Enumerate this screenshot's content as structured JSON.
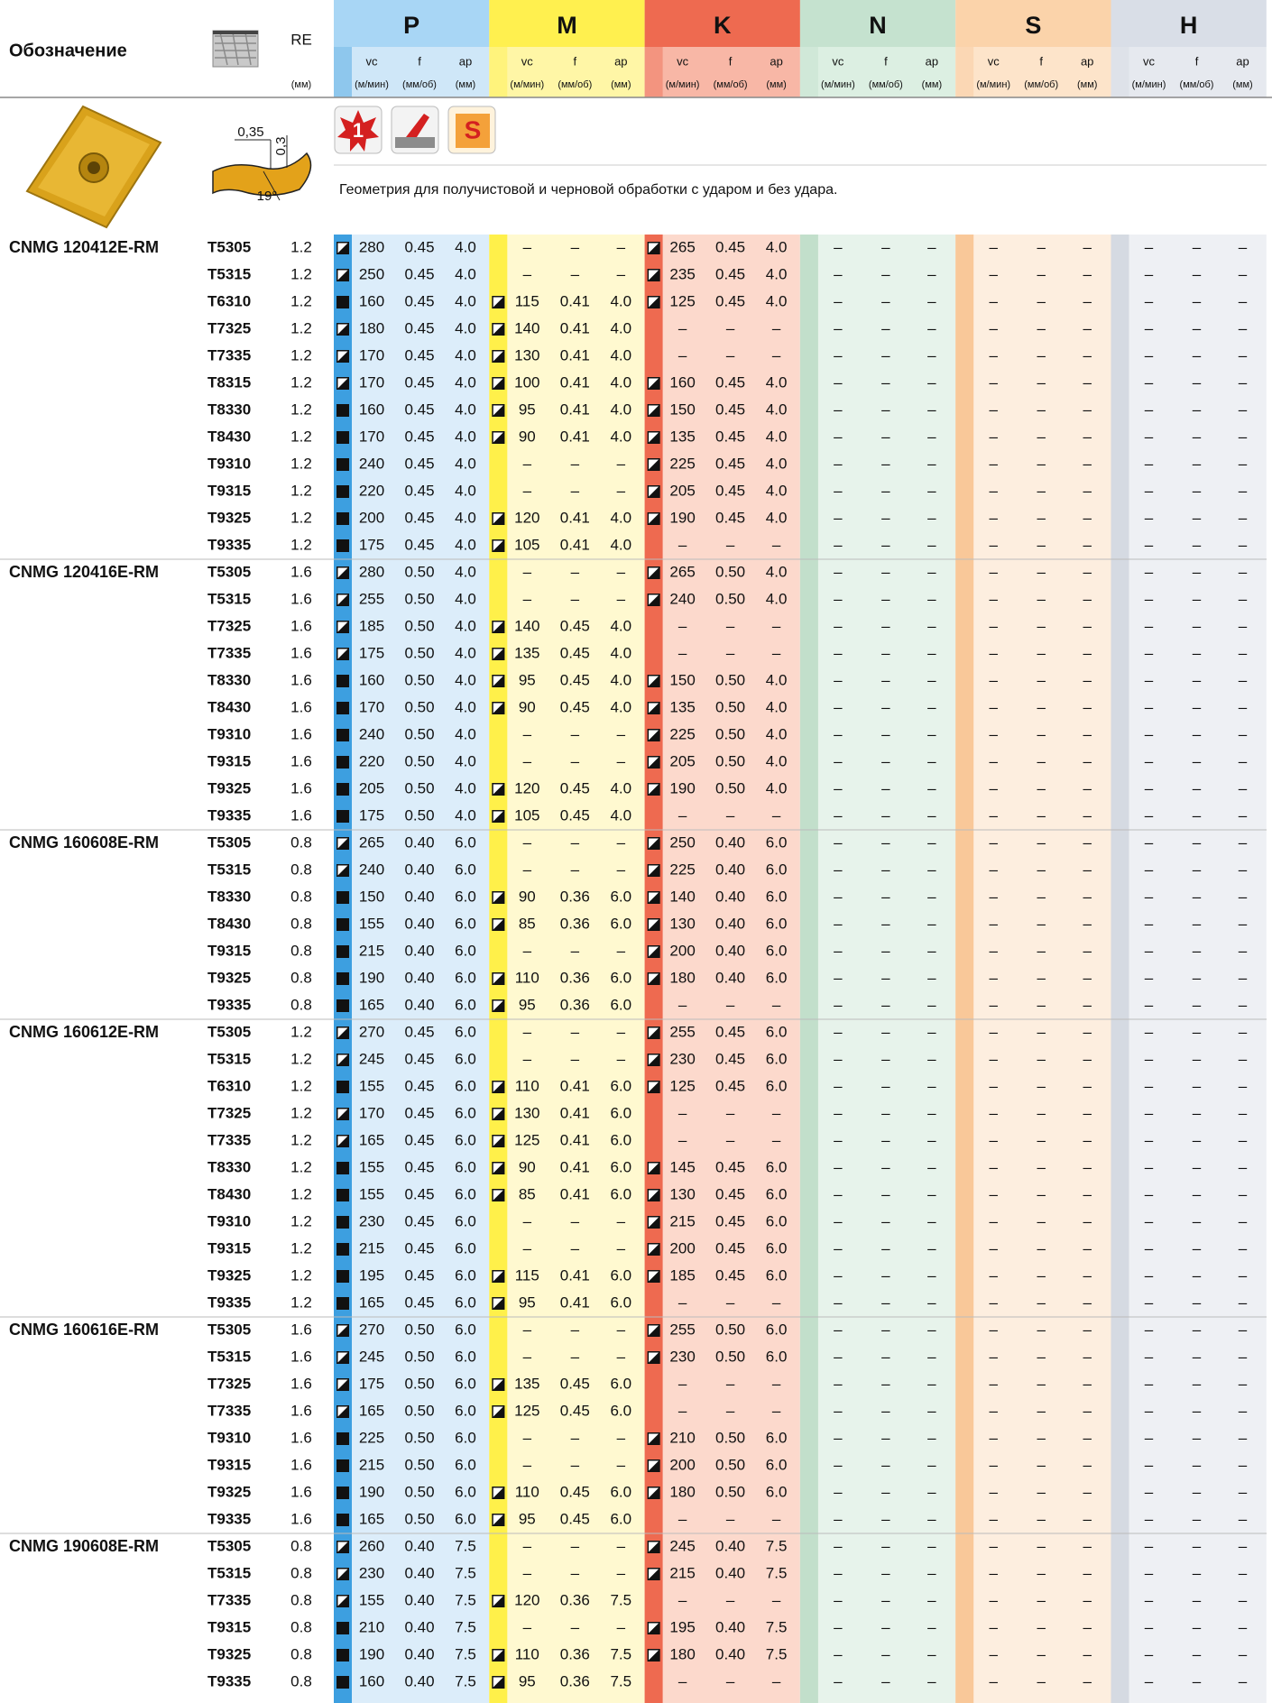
{
  "header": {
    "designation": "Обозначение",
    "re": "RE",
    "re_unit": "(мм)",
    "groups": [
      "P",
      "M",
      "K",
      "N",
      "S",
      "H"
    ],
    "sub": [
      "vc",
      "f",
      "ap"
    ],
    "units": [
      "(м/мин)",
      "(мм/об)",
      "(мм)"
    ]
  },
  "geometry": {
    "dims": [
      "0,35",
      "0,3",
      "19°"
    ],
    "badge1": "1",
    "badge3": "S",
    "text": "Геометрия для получистовой и черновой обработки с ударом и без удара."
  },
  "table": {
    "dash": "–",
    "groups": [
      {
        "designation": "CNMG 120412E-RM",
        "rows": [
          [
            "T5305",
            "1.2",
            [
              "h",
              "280",
              "0.45",
              "4.0"
            ],
            null,
            [
              "h",
              "265",
              "0.45",
              "4.0"
            ]
          ],
          [
            "T5315",
            "1.2",
            [
              "h",
              "250",
              "0.45",
              "4.0"
            ],
            null,
            [
              "h",
              "235",
              "0.45",
              "4.0"
            ]
          ],
          [
            "T6310",
            "1.2",
            [
              "f",
              "160",
              "0.45",
              "4.0"
            ],
            [
              "h",
              "115",
              "0.41",
              "4.0"
            ],
            [
              "h",
              "125",
              "0.45",
              "4.0"
            ]
          ],
          [
            "T7325",
            "1.2",
            [
              "h",
              "180",
              "0.45",
              "4.0"
            ],
            [
              "h",
              "140",
              "0.41",
              "4.0"
            ],
            null
          ],
          [
            "T7335",
            "1.2",
            [
              "h",
              "170",
              "0.45",
              "4.0"
            ],
            [
              "h",
              "130",
              "0.41",
              "4.0"
            ],
            null
          ],
          [
            "T8315",
            "1.2",
            [
              "h",
              "170",
              "0.45",
              "4.0"
            ],
            [
              "h",
              "100",
              "0.41",
              "4.0"
            ],
            [
              "h",
              "160",
              "0.45",
              "4.0"
            ]
          ],
          [
            "T8330",
            "1.2",
            [
              "f",
              "160",
              "0.45",
              "4.0"
            ],
            [
              "h",
              "95",
              "0.41",
              "4.0"
            ],
            [
              "h",
              "150",
              "0.45",
              "4.0"
            ]
          ],
          [
            "T8430",
            "1.2",
            [
              "f",
              "170",
              "0.45",
              "4.0"
            ],
            [
              "h",
              "90",
              "0.41",
              "4.0"
            ],
            [
              "h",
              "135",
              "0.45",
              "4.0"
            ]
          ],
          [
            "T9310",
            "1.2",
            [
              "f",
              "240",
              "0.45",
              "4.0"
            ],
            null,
            [
              "h",
              "225",
              "0.45",
              "4.0"
            ]
          ],
          [
            "T9315",
            "1.2",
            [
              "f",
              "220",
              "0.45",
              "4.0"
            ],
            null,
            [
              "h",
              "205",
              "0.45",
              "4.0"
            ]
          ],
          [
            "T9325",
            "1.2",
            [
              "f",
              "200",
              "0.45",
              "4.0"
            ],
            [
              "h",
              "120",
              "0.41",
              "4.0"
            ],
            [
              "h",
              "190",
              "0.45",
              "4.0"
            ]
          ],
          [
            "T9335",
            "1.2",
            [
              "f",
              "175",
              "0.45",
              "4.0"
            ],
            [
              "h",
              "105",
              "0.41",
              "4.0"
            ],
            null
          ]
        ]
      },
      {
        "designation": "CNMG 120416E-RM",
        "rows": [
          [
            "T5305",
            "1.6",
            [
              "h",
              "280",
              "0.50",
              "4.0"
            ],
            null,
            [
              "h",
              "265",
              "0.50",
              "4.0"
            ]
          ],
          [
            "T5315",
            "1.6",
            [
              "h",
              "255",
              "0.50",
              "4.0"
            ],
            null,
            [
              "h",
              "240",
              "0.50",
              "4.0"
            ]
          ],
          [
            "T7325",
            "1.6",
            [
              "h",
              "185",
              "0.50",
              "4.0"
            ],
            [
              "h",
              "140",
              "0.45",
              "4.0"
            ],
            null
          ],
          [
            "T7335",
            "1.6",
            [
              "h",
              "175",
              "0.50",
              "4.0"
            ],
            [
              "h",
              "135",
              "0.45",
              "4.0"
            ],
            null
          ],
          [
            "T8330",
            "1.6",
            [
              "f",
              "160",
              "0.50",
              "4.0"
            ],
            [
              "h",
              "95",
              "0.45",
              "4.0"
            ],
            [
              "h",
              "150",
              "0.50",
              "4.0"
            ]
          ],
          [
            "T8430",
            "1.6",
            [
              "f",
              "170",
              "0.50",
              "4.0"
            ],
            [
              "h",
              "90",
              "0.45",
              "4.0"
            ],
            [
              "h",
              "135",
              "0.50",
              "4.0"
            ]
          ],
          [
            "T9310",
            "1.6",
            [
              "f",
              "240",
              "0.50",
              "4.0"
            ],
            null,
            [
              "h",
              "225",
              "0.50",
              "4.0"
            ]
          ],
          [
            "T9315",
            "1.6",
            [
              "f",
              "220",
              "0.50",
              "4.0"
            ],
            null,
            [
              "h",
              "205",
              "0.50",
              "4.0"
            ]
          ],
          [
            "T9325",
            "1.6",
            [
              "f",
              "205",
              "0.50",
              "4.0"
            ],
            [
              "h",
              "120",
              "0.45",
              "4.0"
            ],
            [
              "h",
              "190",
              "0.50",
              "4.0"
            ]
          ],
          [
            "T9335",
            "1.6",
            [
              "f",
              "175",
              "0.50",
              "4.0"
            ],
            [
              "h",
              "105",
              "0.45",
              "4.0"
            ],
            null
          ]
        ]
      },
      {
        "designation": "CNMG 160608E-RM",
        "rows": [
          [
            "T5305",
            "0.8",
            [
              "h",
              "265",
              "0.40",
              "6.0"
            ],
            null,
            [
              "h",
              "250",
              "0.40",
              "6.0"
            ]
          ],
          [
            "T5315",
            "0.8",
            [
              "h",
              "240",
              "0.40",
              "6.0"
            ],
            null,
            [
              "h",
              "225",
              "0.40",
              "6.0"
            ]
          ],
          [
            "T8330",
            "0.8",
            [
              "f",
              "150",
              "0.40",
              "6.0"
            ],
            [
              "h",
              "90",
              "0.36",
              "6.0"
            ],
            [
              "h",
              "140",
              "0.40",
              "6.0"
            ]
          ],
          [
            "T8430",
            "0.8",
            [
              "f",
              "155",
              "0.40",
              "6.0"
            ],
            [
              "h",
              "85",
              "0.36",
              "6.0"
            ],
            [
              "h",
              "130",
              "0.40",
              "6.0"
            ]
          ],
          [
            "T9315",
            "0.8",
            [
              "f",
              "215",
              "0.40",
              "6.0"
            ],
            null,
            [
              "h",
              "200",
              "0.40",
              "6.0"
            ]
          ],
          [
            "T9325",
            "0.8",
            [
              "f",
              "190",
              "0.40",
              "6.0"
            ],
            [
              "h",
              "110",
              "0.36",
              "6.0"
            ],
            [
              "h",
              "180",
              "0.40",
              "6.0"
            ]
          ],
          [
            "T9335",
            "0.8",
            [
              "f",
              "165",
              "0.40",
              "6.0"
            ],
            [
              "h",
              "95",
              "0.36",
              "6.0"
            ],
            null
          ]
        ]
      },
      {
        "designation": "CNMG 160612E-RM",
        "rows": [
          [
            "T5305",
            "1.2",
            [
              "h",
              "270",
              "0.45",
              "6.0"
            ],
            null,
            [
              "h",
              "255",
              "0.45",
              "6.0"
            ]
          ],
          [
            "T5315",
            "1.2",
            [
              "h",
              "245",
              "0.45",
              "6.0"
            ],
            null,
            [
              "h",
              "230",
              "0.45",
              "6.0"
            ]
          ],
          [
            "T6310",
            "1.2",
            [
              "f",
              "155",
              "0.45",
              "6.0"
            ],
            [
              "h",
              "110",
              "0.41",
              "6.0"
            ],
            [
              "h",
              "125",
              "0.45",
              "6.0"
            ]
          ],
          [
            "T7325",
            "1.2",
            [
              "h",
              "170",
              "0.45",
              "6.0"
            ],
            [
              "h",
              "130",
              "0.41",
              "6.0"
            ],
            null
          ],
          [
            "T7335",
            "1.2",
            [
              "h",
              "165",
              "0.45",
              "6.0"
            ],
            [
              "h",
              "125",
              "0.41",
              "6.0"
            ],
            null
          ],
          [
            "T8330",
            "1.2",
            [
              "f",
              "155",
              "0.45",
              "6.0"
            ],
            [
              "h",
              "90",
              "0.41",
              "6.0"
            ],
            [
              "h",
              "145",
              "0.45",
              "6.0"
            ]
          ],
          [
            "T8430",
            "1.2",
            [
              "f",
              "155",
              "0.45",
              "6.0"
            ],
            [
              "h",
              "85",
              "0.41",
              "6.0"
            ],
            [
              "h",
              "130",
              "0.45",
              "6.0"
            ]
          ],
          [
            "T9310",
            "1.2",
            [
              "f",
              "230",
              "0.45",
              "6.0"
            ],
            null,
            [
              "h",
              "215",
              "0.45",
              "6.0"
            ]
          ],
          [
            "T9315",
            "1.2",
            [
              "f",
              "215",
              "0.45",
              "6.0"
            ],
            null,
            [
              "h",
              "200",
              "0.45",
              "6.0"
            ]
          ],
          [
            "T9325",
            "1.2",
            [
              "f",
              "195",
              "0.45",
              "6.0"
            ],
            [
              "h",
              "115",
              "0.41",
              "6.0"
            ],
            [
              "h",
              "185",
              "0.45",
              "6.0"
            ]
          ],
          [
            "T9335",
            "1.2",
            [
              "f",
              "165",
              "0.45",
              "6.0"
            ],
            [
              "h",
              "95",
              "0.41",
              "6.0"
            ],
            null
          ]
        ]
      },
      {
        "designation": "CNMG 160616E-RM",
        "rows": [
          [
            "T5305",
            "1.6",
            [
              "h",
              "270",
              "0.50",
              "6.0"
            ],
            null,
            [
              "h",
              "255",
              "0.50",
              "6.0"
            ]
          ],
          [
            "T5315",
            "1.6",
            [
              "h",
              "245",
              "0.50",
              "6.0"
            ],
            null,
            [
              "h",
              "230",
              "0.50",
              "6.0"
            ]
          ],
          [
            "T7325",
            "1.6",
            [
              "h",
              "175",
              "0.50",
              "6.0"
            ],
            [
              "h",
              "135",
              "0.45",
              "6.0"
            ],
            null
          ],
          [
            "T7335",
            "1.6",
            [
              "h",
              "165",
              "0.50",
              "6.0"
            ],
            [
              "h",
              "125",
              "0.45",
              "6.0"
            ],
            null
          ],
          [
            "T9310",
            "1.6",
            [
              "f",
              "225",
              "0.50",
              "6.0"
            ],
            null,
            [
              "h",
              "210",
              "0.50",
              "6.0"
            ]
          ],
          [
            "T9315",
            "1.6",
            [
              "f",
              "215",
              "0.50",
              "6.0"
            ],
            null,
            [
              "h",
              "200",
              "0.50",
              "6.0"
            ]
          ],
          [
            "T9325",
            "1.6",
            [
              "f",
              "190",
              "0.50",
              "6.0"
            ],
            [
              "h",
              "110",
              "0.45",
              "6.0"
            ],
            [
              "h",
              "180",
              "0.50",
              "6.0"
            ]
          ],
          [
            "T9335",
            "1.6",
            [
              "f",
              "165",
              "0.50",
              "6.0"
            ],
            [
              "h",
              "95",
              "0.45",
              "6.0"
            ],
            null
          ]
        ]
      },
      {
        "designation": "CNMG 190608E-RM",
        "rows": [
          [
            "T5305",
            "0.8",
            [
              "h",
              "260",
              "0.40",
              "7.5"
            ],
            null,
            [
              "h",
              "245",
              "0.40",
              "7.5"
            ]
          ],
          [
            "T5315",
            "0.8",
            [
              "h",
              "230",
              "0.40",
              "7.5"
            ],
            null,
            [
              "h",
              "215",
              "0.40",
              "7.5"
            ]
          ],
          [
            "T7335",
            "0.8",
            [
              "h",
              "155",
              "0.40",
              "7.5"
            ],
            [
              "h",
              "120",
              "0.36",
              "7.5"
            ],
            null
          ],
          [
            "T9315",
            "0.8",
            [
              "f",
              "210",
              "0.40",
              "7.5"
            ],
            null,
            [
              "h",
              "195",
              "0.40",
              "7.5"
            ]
          ],
          [
            "T9325",
            "0.8",
            [
              "f",
              "190",
              "0.40",
              "7.5"
            ],
            [
              "h",
              "110",
              "0.36",
              "7.5"
            ],
            [
              "h",
              "180",
              "0.40",
              "7.5"
            ]
          ],
          [
            "T9335",
            "0.8",
            [
              "f",
              "160",
              "0.40",
              "7.5"
            ],
            [
              "h",
              "95",
              "0.36",
              "7.5"
            ],
            null
          ]
        ]
      }
    ]
  }
}
